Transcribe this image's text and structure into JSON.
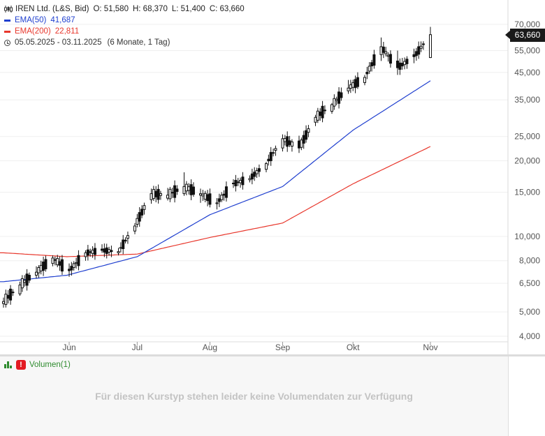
{
  "legend": {
    "instrument": "IREN Ltd. (L&S, Bid)",
    "open": "O: 51,580",
    "high": "H: 68,370",
    "low": "L: 51,400",
    "close": "C: 63,660",
    "ema50_label": "EMA(50)",
    "ema50_value": "41,687",
    "ema200_label": "EMA(200)",
    "ema200_value": "22,811",
    "range": "05.05.2025 - 03.11.2025",
    "period": "(6 Monate, 1 Tag)"
  },
  "last_price_badge": "63,660",
  "colors": {
    "ema50": "#1f3fcf",
    "ema200": "#e8372c",
    "candle": "#111111",
    "badge": "#1a1a1a"
  },
  "volume_panel": {
    "title": "Volumen(1)",
    "message": "Für diesen Kurstyp stehen leider keine Volumendaten zur Verfügung"
  },
  "chart_data": {
    "type": "candlestick",
    "y_scale": "log",
    "ylim": [
      3.8,
      76
    ],
    "y_ticks": [
      {
        "value": 70,
        "label": "70,000"
      },
      {
        "value": 55,
        "label": "55,000"
      },
      {
        "value": 45,
        "label": "45,000"
      },
      {
        "value": 35,
        "label": "35,000"
      },
      {
        "value": 25,
        "label": "25,000"
      },
      {
        "value": 20,
        "label": "20,000"
      },
      {
        "value": 15,
        "label": "15,000"
      },
      {
        "value": 10,
        "label": "10,000"
      },
      {
        "value": 8,
        "label": "8,000"
      },
      {
        "value": 6.5,
        "label": "6,500"
      },
      {
        "value": 5,
        "label": "5,000"
      },
      {
        "value": 4,
        "label": "4,000"
      }
    ],
    "x_ticks": [
      {
        "date": "2025-06-02",
        "label": "Jun"
      },
      {
        "date": "2025-07-01",
        "label": "Jul"
      },
      {
        "date": "2025-08-01",
        "label": "Aug"
      },
      {
        "date": "2025-09-01",
        "label": "Sep"
      },
      {
        "date": "2025-10-01",
        "label": "Okt"
      },
      {
        "date": "2025-11-03",
        "label": "Nov"
      }
    ],
    "anchors": [
      {
        "date": "2025-05-05",
        "open": 5.4,
        "high": 5.7,
        "low": 5.2,
        "close": 5.5
      },
      {
        "date": "2025-05-12",
        "open": 5.9,
        "high": 6.6,
        "low": 5.8,
        "close": 6.4
      },
      {
        "date": "2025-05-19",
        "open": 7.0,
        "high": 7.6,
        "low": 6.8,
        "close": 7.2
      },
      {
        "date": "2025-05-26",
        "open": 7.8,
        "high": 8.4,
        "low": 7.6,
        "close": 8.2
      },
      {
        "date": "2025-06-02",
        "open": 7.4,
        "high": 7.8,
        "low": 6.9,
        "close": 7.3
      },
      {
        "date": "2025-06-09",
        "open": 8.3,
        "high": 8.8,
        "low": 8.0,
        "close": 8.6
      },
      {
        "date": "2025-06-16",
        "open": 8.9,
        "high": 9.3,
        "low": 8.6,
        "close": 8.8
      },
      {
        "date": "2025-06-23",
        "open": 8.6,
        "high": 9.0,
        "low": 8.4,
        "close": 8.7
      },
      {
        "date": "2025-06-30",
        "open": 10.5,
        "high": 11.3,
        "low": 10.2,
        "close": 11.0
      },
      {
        "date": "2025-07-07",
        "open": 14.0,
        "high": 15.5,
        "low": 13.5,
        "close": 14.8
      },
      {
        "date": "2025-07-14",
        "open": 14.2,
        "high": 15.6,
        "low": 13.9,
        "close": 14.6
      },
      {
        "date": "2025-07-21",
        "open": 14.8,
        "high": 18.0,
        "low": 14.5,
        "close": 15.8
      },
      {
        "date": "2025-07-28",
        "open": 14.6,
        "high": 15.5,
        "low": 13.6,
        "close": 14.8
      },
      {
        "date": "2025-08-04",
        "open": 13.5,
        "high": 14.2,
        "low": 12.8,
        "close": 13.6
      },
      {
        "date": "2025-08-11",
        "open": 16.3,
        "high": 16.9,
        "low": 15.6,
        "close": 16.2
      },
      {
        "date": "2025-08-18",
        "open": 16.8,
        "high": 17.5,
        "low": 16.4,
        "close": 17.0
      },
      {
        "date": "2025-08-25",
        "open": 18.5,
        "high": 19.8,
        "low": 18.0,
        "close": 19.5
      },
      {
        "date": "2025-09-01",
        "open": 22.5,
        "high": 25.5,
        "low": 21.8,
        "close": 24.5
      },
      {
        "date": "2025-09-08",
        "open": 24.0,
        "high": 25.2,
        "low": 21.5,
        "close": 22.5
      },
      {
        "date": "2025-09-15",
        "open": 28.5,
        "high": 30.5,
        "low": 27.5,
        "close": 29.8
      },
      {
        "date": "2025-09-22",
        "open": 31.5,
        "high": 34.0,
        "low": 30.8,
        "close": 33.5
      },
      {
        "date": "2025-09-29",
        "open": 38.0,
        "high": 42.0,
        "low": 37.0,
        "close": 39.0
      },
      {
        "date": "2025-10-06",
        "open": 41.0,
        "high": 44.0,
        "low": 40.0,
        "close": 43.0
      },
      {
        "date": "2025-10-13",
        "open": 53.0,
        "high": 62.0,
        "low": 50.0,
        "close": 57.0
      },
      {
        "date": "2025-10-20",
        "open": 50.0,
        "high": 55.0,
        "low": 44.0,
        "close": 47.0
      },
      {
        "date": "2025-10-27",
        "open": 53.0,
        "high": 56.0,
        "low": 49.0,
        "close": 52.0
      },
      {
        "date": "2025-11-03",
        "open": 51.58,
        "high": 68.37,
        "low": 51.4,
        "close": 63.66
      }
    ],
    "ema50": [
      {
        "date": "2025-05-05",
        "value": 6.6
      },
      {
        "date": "2025-06-01",
        "value": 7.0
      },
      {
        "date": "2025-07-01",
        "value": 8.3
      },
      {
        "date": "2025-08-01",
        "value": 12.2
      },
      {
        "date": "2025-09-01",
        "value": 15.8
      },
      {
        "date": "2025-10-01",
        "value": 26.5
      },
      {
        "date": "2025-11-03",
        "value": 41.687
      }
    ],
    "ema200": [
      {
        "date": "2025-05-05",
        "value": 8.6
      },
      {
        "date": "2025-06-01",
        "value": 8.3
      },
      {
        "date": "2025-07-01",
        "value": 8.5
      },
      {
        "date": "2025-08-01",
        "value": 9.9
      },
      {
        "date": "2025-09-01",
        "value": 11.3
      },
      {
        "date": "2025-10-01",
        "value": 16.2
      },
      {
        "date": "2025-11-03",
        "value": 22.811
      }
    ]
  }
}
